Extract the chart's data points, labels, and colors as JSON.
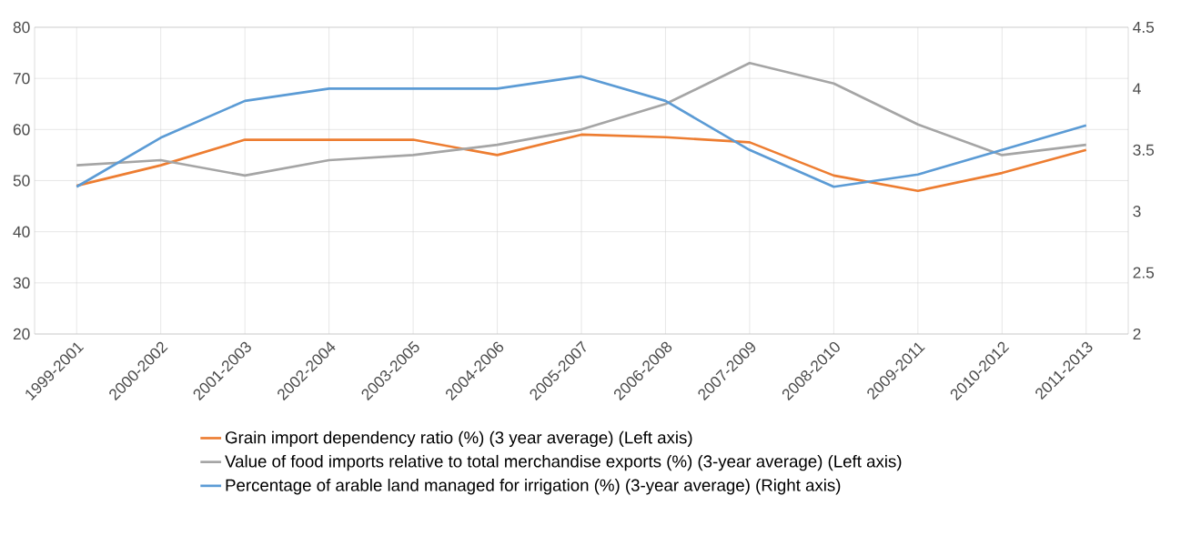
{
  "chart_data": {
    "type": "line",
    "categories": [
      "1999-2001",
      "2000-2002",
      "2001-2003",
      "2002-2004",
      "2003-2005",
      "2004-2006",
      "2005-2007",
      "2006-2008",
      "2007-2009",
      "2008-2010",
      "2009-2011",
      "2010-2012",
      "2011-2013"
    ],
    "series": [
      {
        "name": "Grain import dependency ratio (%) (3 year average) (Left axis)",
        "color": "#ed7d31",
        "values": [
          49,
          53,
          58,
          58,
          58,
          55,
          59,
          58.5,
          57.5,
          51,
          48,
          51.5,
          56
        ]
      },
      {
        "name": "Value of food imports relative to total merchandise exports (%) (3-year average) (Left axis)",
        "color": "#a5a5a5",
        "values": [
          53,
          54,
          51,
          54,
          55,
          57,
          60,
          65,
          73,
          69,
          61,
          55,
          57
        ]
      },
      {
        "name": "Percentage of arable land managed for irrigation (%) (3-year average) (Right axis)",
        "color": "#5b9bd5",
        "axis": "y2",
        "values": [
          3.2,
          3.6,
          3.9,
          4.0,
          4.0,
          4.0,
          4.1,
          3.9,
          3.5,
          3.2,
          3.3,
          3.5,
          3.7
        ]
      }
    ],
    "ylim": [
      20,
      80
    ],
    "yticks": [
      20,
      30,
      40,
      50,
      60,
      70,
      80
    ],
    "y2lim": [
      2,
      4.5
    ],
    "y2ticks": [
      2,
      2.5,
      3,
      3.5,
      4,
      4.5
    ],
    "grid": true,
    "legend": "bottom",
    "marker": "none",
    "line_style": "solid"
  }
}
